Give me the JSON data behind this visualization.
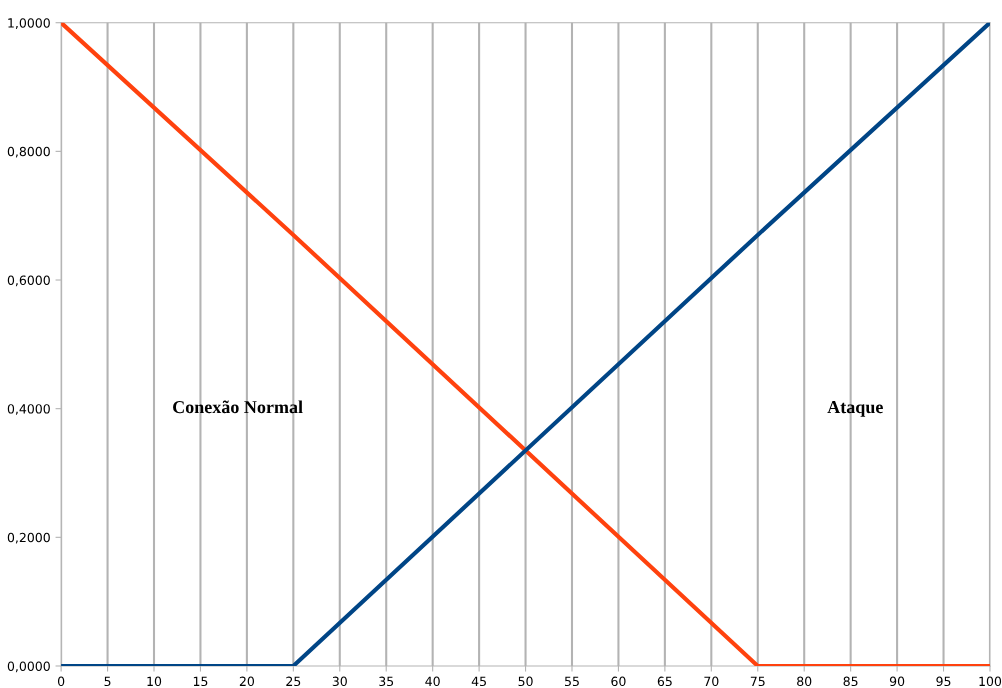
{
  "chart_data": {
    "type": "line",
    "x": [
      0,
      25,
      75,
      100
    ],
    "series": [
      {
        "color": "#ff420e",
        "values": [
          1,
          0.67,
          0,
          0
        ]
      },
      {
        "color": "#004586",
        "values": [
          0,
          0,
          0.67,
          1
        ]
      }
    ],
    "xlim": [
      0,
      100
    ],
    "xticks": [
      0,
      5,
      10,
      15,
      20,
      25,
      30,
      35,
      40,
      45,
      50,
      55,
      60,
      65,
      70,
      75,
      80,
      85,
      90,
      95,
      100
    ],
    "ylim": [
      0,
      1
    ],
    "yticks": [
      {
        "value": 0,
        "label": "0,0000"
      },
      {
        "value": 0.2,
        "label": "0,2000"
      },
      {
        "value": 0.4,
        "label": "0,4000"
      },
      {
        "value": 0.6,
        "label": "0,6000"
      },
      {
        "value": 0.8,
        "label": "0,8000"
      },
      {
        "value": 1,
        "label": "1,0000"
      }
    ],
    "grid": "x",
    "legend": false,
    "marker": "none",
    "line_style": "solid",
    "annotations": [
      "Conexão Normal",
      "Ataque"
    ]
  }
}
